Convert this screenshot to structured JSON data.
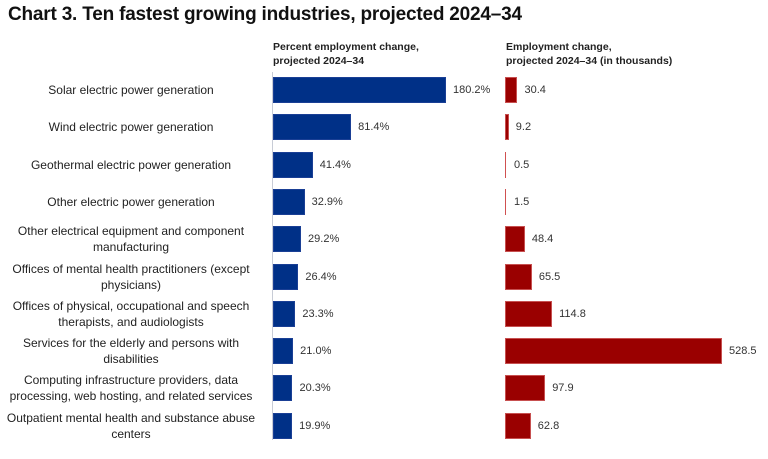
{
  "title": "Chart 3. Ten fastest growing industries, projected 2024–34",
  "chart_data": [
    {
      "type": "bar",
      "orientation": "horizontal",
      "title": "Percent employment change, projected 2024–34",
      "categories": [
        "Solar electric power generation",
        "Wind electric power generation",
        "Geothermal electric power generation",
        "Other electric power generation",
        "Other electrical equipment and component manufacturing",
        "Offices of mental health practitioners (except physicians)",
        "Offices of physical, occupational and speech therapists, and audiologists",
        "Services for the elderly and persons with disabilities",
        "Computing infrastructure providers, data processing, web hosting, and related services",
        "Outpatient mental health and substance abuse centers"
      ],
      "values": [
        180.2,
        81.4,
        41.4,
        32.9,
        29.2,
        26.4,
        23.3,
        21.0,
        20.3,
        19.9
      ],
      "value_labels": [
        "180.2%",
        "81.4%",
        "41.4%",
        "32.9%",
        "29.2%",
        "26.4%",
        "23.3%",
        "21.0%",
        "20.3%",
        "19.9%"
      ],
      "unit": "%",
      "color": "#003087",
      "xlim": [
        0,
        180.2
      ],
      "grid": false
    },
    {
      "type": "bar",
      "orientation": "horizontal",
      "title": "Employment change, projected 2024–34 (in thousands)",
      "categories": [
        "Solar electric power generation",
        "Wind electric power generation",
        "Geothermal electric power generation",
        "Other electric power generation",
        "Other electrical equipment and component manufacturing",
        "Offices of mental health practitioners (except physicians)",
        "Offices of physical, occupational and speech therapists, and audiologists",
        "Services for the elderly and persons with disabilities",
        "Computing infrastructure providers, data processing, web hosting, and related services",
        "Outpatient mental health and substance abuse centers"
      ],
      "values": [
        30.4,
        9.2,
        0.5,
        1.5,
        48.4,
        65.5,
        114.8,
        528.5,
        97.9,
        62.8
      ],
      "value_labels": [
        "30.4",
        "9.2",
        "0.5",
        "1.5",
        "48.4",
        "65.5",
        "114.8",
        "528.5",
        "97.9",
        "62.8"
      ],
      "unit": "thousands",
      "color": "#9a0000",
      "xlim": [
        0,
        528.5
      ],
      "grid": false
    }
  ],
  "headers": {
    "percent": [
      "Percent employment change,",
      "projected 2024–34"
    ],
    "employment": [
      "Employment change,",
      "projected 2024–34 (in thousands)"
    ]
  }
}
